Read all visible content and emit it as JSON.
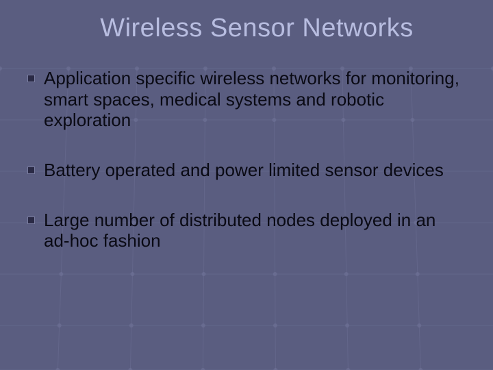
{
  "slide": {
    "title": "Wireless Sensor Networks",
    "bullets": [
      "Application specific wireless networks for monitoring, smart spaces, medical systems and robotic exploration",
      "Battery operated and power limited sensor devices",
      "Large number of distributed nodes deployed in an ad-hoc fashion"
    ]
  },
  "style": {
    "background_color": "#5a5d80",
    "title_color": "#b8bde0",
    "title_fontsize": 38,
    "bullet_text_color": "#0a0a14",
    "bullet_fontsize": 26,
    "bullet_icon_color": "#2a2a45",
    "bullet_icon_border": "#7a7da0",
    "grid_line_color": "#6d7095",
    "grid_node_color": "#707398"
  },
  "grid": {
    "h_lines": [
      100,
      175,
      250,
      325,
      400,
      475,
      540
    ],
    "v_lines": [
      0,
      100,
      200,
      300,
      400,
      500,
      600,
      720
    ],
    "node_radius": 3
  }
}
